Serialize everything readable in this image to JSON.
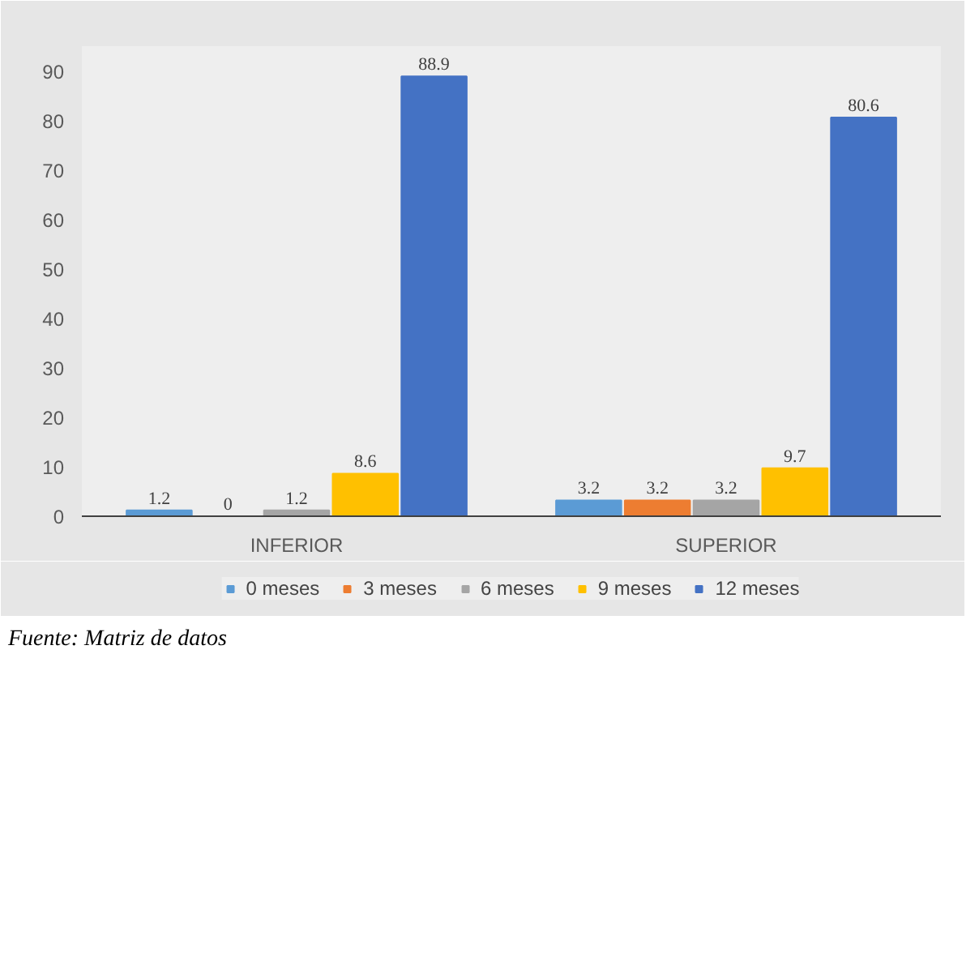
{
  "chart_data": {
    "type": "bar",
    "categories": [
      "INFERIOR",
      "SUPERIOR"
    ],
    "series": [
      {
        "name": "0 meses",
        "color": "#5b9bd5",
        "values": [
          1.2,
          3.2
        ]
      },
      {
        "name": "3 meses",
        "color": "#ed7d31",
        "values": [
          0,
          3.2
        ]
      },
      {
        "name": "6 meses",
        "color": "#a5a5a5",
        "values": [
          1.2,
          3.2
        ]
      },
      {
        "name": "9 meses",
        "color": "#ffc000",
        "values": [
          8.6,
          9.7
        ]
      },
      {
        "name": "12 meses",
        "color": "#4472c4",
        "values": [
          88.9,
          80.6
        ]
      }
    ],
    "ylim": [
      0,
      95
    ],
    "yticks": [
      0,
      10,
      20,
      30,
      40,
      50,
      60,
      70,
      80,
      90
    ],
    "grid": false,
    "legend": "bottom",
    "data_labels": true,
    "annotations": [
      "Fuente: Matriz de datos"
    ]
  }
}
